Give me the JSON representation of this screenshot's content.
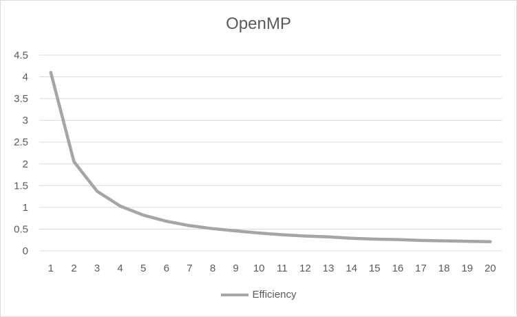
{
  "chart_data": {
    "type": "line",
    "title": "OpenMP",
    "xlabel": "",
    "ylabel": "",
    "x": [
      1,
      2,
      3,
      4,
      5,
      6,
      7,
      8,
      9,
      10,
      11,
      12,
      13,
      14,
      15,
      16,
      17,
      18,
      19,
      20
    ],
    "series": [
      {
        "name": "Efficiency",
        "color": "#a5a5a5",
        "values": [
          4.1,
          2.05,
          1.37,
          1.03,
          0.82,
          0.68,
          0.58,
          0.51,
          0.46,
          0.41,
          0.37,
          0.34,
          0.32,
          0.29,
          0.27,
          0.26,
          0.24,
          0.23,
          0.22,
          0.21
        ]
      }
    ],
    "ylim": [
      0,
      4.5
    ],
    "yticks": [
      0,
      0.5,
      1,
      1.5,
      2,
      2.5,
      3,
      3.5,
      4,
      4.5
    ],
    "ytick_labels": [
      "0",
      "0.5",
      "1",
      "1.5",
      "2",
      "2.5",
      "3",
      "3.5",
      "4",
      "4.5"
    ],
    "grid": true,
    "legend_position": "bottom"
  }
}
